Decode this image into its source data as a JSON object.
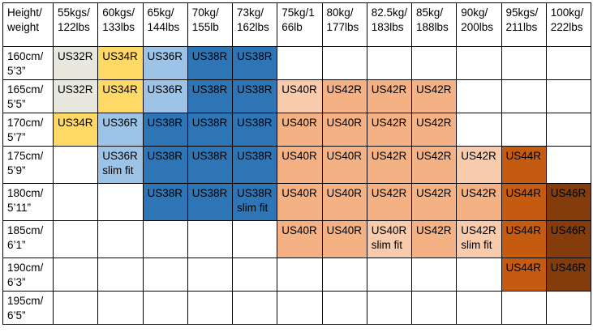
{
  "chart_data": {
    "type": "table",
    "title": "",
    "columns": [
      "Height/\nweight",
      "55kgs/\n122lbs",
      "60kgs/\n133lbs",
      "65kg/\n144lbs",
      "70kg/\n155lb",
      "73kg/\n162lbs",
      "75kg/1\n66lb",
      "80kg/\n177lbs",
      "82.5kg/\n183lbs",
      "85kg/\n188lbs",
      "90kg/\n200lbs",
      "95kgs/\n211lbs",
      "100kg/\n222lbs"
    ],
    "palette": {
      "us32r_pale": "#e9e8df",
      "us34r_yellow": "#ffd965",
      "us36r_light_blue": "#9dc3e6",
      "us38r_blue": "#2e75b6",
      "peach_light": "#f8cbad",
      "peach": "#f4b183",
      "us44r_dark_orange": "#c55a11",
      "us46r_brown": "#843c0c",
      "grid": "#000000",
      "text": "#000000"
    },
    "rows": [
      {
        "label": "160cm/\n5’3”",
        "cells": [
          {
            "text": "US32R",
            "bg": "#e9e8df"
          },
          {
            "text": "US34R",
            "bg": "#ffd965"
          },
          {
            "text": "US36R",
            "bg": "#9dc3e6"
          },
          {
            "text": "US38R",
            "bg": "#2e75b6"
          },
          {
            "text": "US38R",
            "bg": "#2e75b6"
          },
          {
            "text": "",
            "bg": ""
          },
          {
            "text": "",
            "bg": ""
          },
          {
            "text": "",
            "bg": ""
          },
          {
            "text": "",
            "bg": ""
          },
          {
            "text": "",
            "bg": ""
          },
          {
            "text": "",
            "bg": ""
          },
          {
            "text": "",
            "bg": ""
          }
        ]
      },
      {
        "label": "165cm/\n5’5”",
        "cells": [
          {
            "text": "US32R",
            "bg": "#e9e8df"
          },
          {
            "text": "US34R",
            "bg": "#ffd965"
          },
          {
            "text": "US36R",
            "bg": "#9dc3e6"
          },
          {
            "text": "US38R",
            "bg": "#2e75b6"
          },
          {
            "text": "US38R",
            "bg": "#2e75b6"
          },
          {
            "text": "US40R",
            "bg": "#f8cbad"
          },
          {
            "text": "US42R",
            "bg": "#f4b183"
          },
          {
            "text": "US42R",
            "bg": "#f4b183"
          },
          {
            "text": "US42R",
            "bg": "#f4b183"
          },
          {
            "text": "",
            "bg": ""
          },
          {
            "text": "",
            "bg": ""
          },
          {
            "text": "",
            "bg": ""
          }
        ]
      },
      {
        "label": "170cm/\n5’7”",
        "cells": [
          {
            "text": "US34R",
            "bg": "#ffd965"
          },
          {
            "text": "US36R",
            "bg": "#9dc3e6"
          },
          {
            "text": "US38R",
            "bg": "#2e75b6"
          },
          {
            "text": "US38R",
            "bg": "#2e75b6"
          },
          {
            "text": "US38R",
            "bg": "#2e75b6"
          },
          {
            "text": "US40R",
            "bg": "#f4b183"
          },
          {
            "text": "US40R",
            "bg": "#f4b183"
          },
          {
            "text": "US42R",
            "bg": "#f4b183"
          },
          {
            "text": "US42R",
            "bg": "#f4b183"
          },
          {
            "text": "",
            "bg": ""
          },
          {
            "text": "",
            "bg": ""
          },
          {
            "text": "",
            "bg": ""
          }
        ]
      },
      {
        "label": "175cm/\n5’9”",
        "cells": [
          {
            "text": "",
            "bg": ""
          },
          {
            "text": "US36R\nslim fit",
            "bg": "#9dc3e6"
          },
          {
            "text": "US38R",
            "bg": "#2e75b6"
          },
          {
            "text": "US38R",
            "bg": "#2e75b6"
          },
          {
            "text": "US38R",
            "bg": "#2e75b6"
          },
          {
            "text": "US40R",
            "bg": "#f4b183"
          },
          {
            "text": "US40R",
            "bg": "#f4b183"
          },
          {
            "text": "US42R",
            "bg": "#f4b183"
          },
          {
            "text": "US42R",
            "bg": "#f4b183"
          },
          {
            "text": "US42R",
            "bg": "#f8cbad"
          },
          {
            "text": "US44R",
            "bg": "#c55a11"
          },
          {
            "text": "",
            "bg": ""
          }
        ]
      },
      {
        "label": "180cm/\n5’11”",
        "cells": [
          {
            "text": "",
            "bg": ""
          },
          {
            "text": "",
            "bg": ""
          },
          {
            "text": "US38R",
            "bg": "#2e75b6"
          },
          {
            "text": "US38R",
            "bg": "#2e75b6"
          },
          {
            "text": "US38R\nslim fit",
            "bg": "#2e75b6"
          },
          {
            "text": "US40R",
            "bg": "#f4b183"
          },
          {
            "text": "US40R",
            "bg": "#f4b183"
          },
          {
            "text": "US42R",
            "bg": "#f4b183"
          },
          {
            "text": "US42R",
            "bg": "#f4b183"
          },
          {
            "text": "US42R",
            "bg": "#f4b183"
          },
          {
            "text": "US44R",
            "bg": "#c55a11"
          },
          {
            "text": "US46R",
            "bg": "#843c0c"
          }
        ]
      },
      {
        "label": "185cm/\n6’1”",
        "cells": [
          {
            "text": "",
            "bg": ""
          },
          {
            "text": "",
            "bg": ""
          },
          {
            "text": "",
            "bg": ""
          },
          {
            "text": "",
            "bg": ""
          },
          {
            "text": "",
            "bg": ""
          },
          {
            "text": "US40R",
            "bg": "#f4b183"
          },
          {
            "text": "US40R",
            "bg": "#f4b183"
          },
          {
            "text": "US40R\nslim fit",
            "bg": "#f8cbad"
          },
          {
            "text": "US42R",
            "bg": "#f4b183"
          },
          {
            "text": "US42R\nslim fit",
            "bg": "#f8cbad"
          },
          {
            "text": "US44R",
            "bg": "#c55a11"
          },
          {
            "text": "US46R",
            "bg": "#843c0c"
          }
        ]
      },
      {
        "label": "190cm/\n6’3”",
        "cells": [
          {
            "text": "",
            "bg": ""
          },
          {
            "text": "",
            "bg": ""
          },
          {
            "text": "",
            "bg": ""
          },
          {
            "text": "",
            "bg": ""
          },
          {
            "text": "",
            "bg": ""
          },
          {
            "text": "",
            "bg": ""
          },
          {
            "text": "",
            "bg": ""
          },
          {
            "text": "",
            "bg": ""
          },
          {
            "text": "",
            "bg": ""
          },
          {
            "text": "",
            "bg": ""
          },
          {
            "text": "US44R",
            "bg": "#c55a11"
          },
          {
            "text": "US46R",
            "bg": "#843c0c"
          }
        ]
      },
      {
        "label": "195cm/\n6’5”",
        "cells": [
          {
            "text": "",
            "bg": ""
          },
          {
            "text": "",
            "bg": ""
          },
          {
            "text": "",
            "bg": ""
          },
          {
            "text": "",
            "bg": ""
          },
          {
            "text": "",
            "bg": ""
          },
          {
            "text": "",
            "bg": ""
          },
          {
            "text": "",
            "bg": ""
          },
          {
            "text": "",
            "bg": ""
          },
          {
            "text": "",
            "bg": ""
          },
          {
            "text": "",
            "bg": ""
          },
          {
            "text": "",
            "bg": ""
          },
          {
            "text": "",
            "bg": ""
          }
        ]
      }
    ]
  }
}
